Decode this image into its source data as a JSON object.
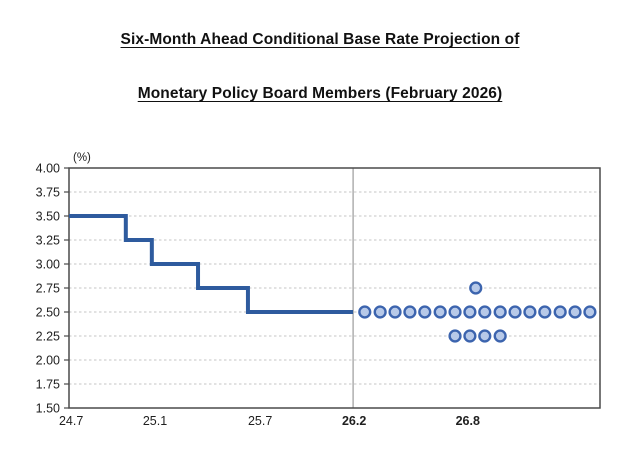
{
  "title": {
    "line1": "Six-Month Ahead Conditional Base Rate Projection of",
    "line2": "Monetary Policy Board Members (February 2026)"
  },
  "chart_data": {
    "type": "line+scatter",
    "title": "Six-Month Ahead Conditional Base Rate Projection of Monetary Policy Board Members (February 2026)",
    "unit_label": "(%)",
    "ylim": [
      1.5,
      4.0
    ],
    "y_tick_step": 0.25,
    "y_tick_labels": [
      "4.00",
      "3.75",
      "3.50",
      "3.25",
      "3.00",
      "2.75",
      "2.50",
      "2.25",
      "2.00",
      "1.75",
      "1.50"
    ],
    "x_ticks": [
      {
        "label": "24.7",
        "pos": 0.004,
        "bold": false
      },
      {
        "label": "25.1",
        "pos": 0.162,
        "bold": false
      },
      {
        "label": "25.7",
        "pos": 0.36,
        "bold": false
      },
      {
        "label": "26.2",
        "pos": 0.537,
        "bold": true
      },
      {
        "label": "26.8",
        "pos": 0.751,
        "bold": true
      }
    ],
    "divider_pos": 0.535,
    "grid": true,
    "actual_step_line": {
      "points": [
        {
          "pos": 0.0,
          "rate": 3.5
        },
        {
          "pos": 0.107,
          "rate": 3.25
        },
        {
          "pos": 0.156,
          "rate": 3.0
        },
        {
          "pos": 0.243,
          "rate": 2.75
        },
        {
          "pos": 0.337,
          "rate": 2.5
        }
      ],
      "end_pos": 0.535
    },
    "projection_dots": [
      {
        "rate": 2.75,
        "positions": [
          0.766
        ]
      },
      {
        "rate": 2.5,
        "positions": [
          0.557,
          0.586,
          0.614,
          0.642,
          0.67,
          0.699,
          0.727,
          0.755,
          0.783,
          0.812,
          0.84,
          0.868,
          0.896,
          0.925,
          0.953,
          0.981
        ]
      },
      {
        "rate": 2.25,
        "positions": [
          0.727,
          0.755,
          0.783,
          0.812
        ]
      }
    ],
    "colors": {
      "line": "#2E5B9E",
      "dot_fill": "#B7C9E8",
      "dot_stroke": "#3C64AE",
      "grid": "#C6C6C6",
      "axis": "#4A4A4A",
      "divider": "#9B9B9B",
      "tick_text": "#1F1F1F"
    }
  }
}
